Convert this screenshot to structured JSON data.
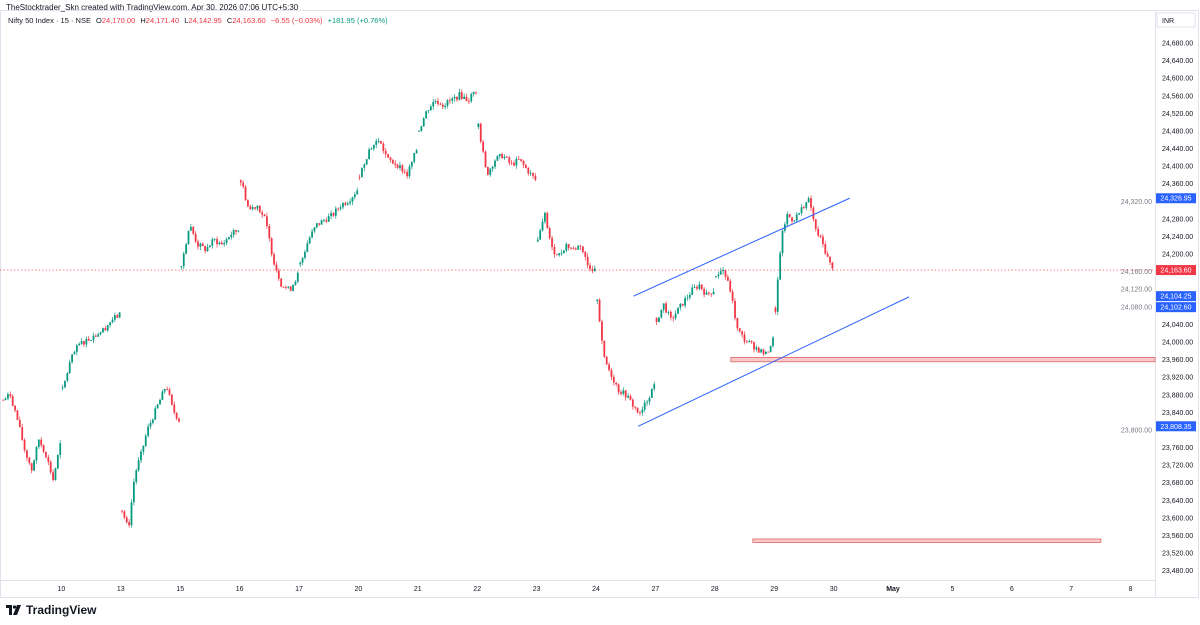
{
  "header": {
    "attribution": "TheStocktrader_Skn created with TradingView.com, Apr 30, 2026 07:06 UTC+5:30",
    "symbol": "Nifty 50 Index · 15 · NSE",
    "open_label": "O",
    "open": "24,170.00",
    "high_label": "H",
    "high": "24,171.40",
    "low_label": "L",
    "low": "24,142.95",
    "close_label": "C",
    "close": "24,163.60",
    "change": "−6.55 (−0.03%)",
    "day_change": "+181.95 (+0.76%)"
  },
  "currency": "INR",
  "footer": {
    "logo_text": "TradingView"
  },
  "colors": {
    "up": "#089981",
    "down": "#f23645",
    "trendline": "#2962ff",
    "zone_fill": "#f8c9c9",
    "zone_border": "#e06666",
    "last_price": "#f23645"
  },
  "chart_data": {
    "type": "candlestick",
    "interval": "15 min",
    "ylim": [
      23460,
      24700
    ],
    "y_ticks": [
      "24,680.00",
      "24,640.00",
      "24,600.00",
      "24,560.00",
      "24,520.00",
      "24,480.00",
      "24,440.00",
      "24,400.00",
      "24,360.00",
      "24,320.00",
      "24,280.00",
      "24,240.00",
      "24,200.00",
      "24,160.00",
      "24,120.00",
      "24,080.00",
      "24,040.00",
      "24,000.00",
      "23,960.00",
      "23,920.00",
      "23,880.00",
      "23,840.00",
      "23,800.00",
      "23,760.00",
      "23,720.00",
      "23,680.00",
      "23,640.00",
      "23,600.00",
      "23,560.00",
      "23,520.00",
      "23,480.00"
    ],
    "x_ticks": [
      "10",
      "13",
      "15",
      "16",
      "17",
      "20",
      "21",
      "22",
      "23",
      "24",
      "27",
      "28",
      "29",
      "30",
      "May",
      "5",
      "6",
      "7",
      "8"
    ],
    "sessions": [
      {
        "day": null,
        "path": [
          23868,
          23880,
          23823,
          23755,
          23710,
          23778,
          23744,
          23687,
          23766
        ]
      },
      {
        "day": "10",
        "path": [
          23891,
          23960,
          23994,
          24005,
          24016,
          24028,
          24050,
          24062
        ]
      },
      {
        "day": "13",
        "path": [
          23619,
          23573,
          23698,
          23744,
          23800,
          23834,
          23868,
          23903,
          23846,
          23823
        ]
      },
      {
        "day": "15",
        "path": [
          24175,
          24266,
          24221,
          24210,
          24232,
          24221,
          24244,
          24255
        ]
      },
      {
        "day": "16",
        "path": [
          24369,
          24300,
          24312,
          24278,
          24187,
          24130,
          24118,
          24153
        ]
      },
      {
        "day": "17",
        "path": [
          24175,
          24232,
          24266,
          24278,
          24289,
          24312,
          24323,
          24346
        ]
      },
      {
        "day": "20",
        "path": [
          24380,
          24437,
          24460,
          24414,
          24403,
          24380,
          24437
        ]
      },
      {
        "day": "21",
        "path": [
          24482,
          24528,
          24550,
          24539,
          24550,
          24562,
          24550,
          24573
        ]
      },
      {
        "day": "22",
        "path": [
          24494,
          24380,
          24414,
          24425,
          24403,
          24414,
          24391,
          24369
        ]
      },
      {
        "day": "23",
        "path": [
          24232,
          24289,
          24210,
          24198,
          24221,
          24210,
          24221,
          24175,
          24164
        ]
      },
      {
        "day": "24",
        "path": [
          24096,
          23960,
          23925,
          23891,
          23880,
          23857,
          23834,
          23868,
          23903
        ]
      },
      {
        "day": "27",
        "path": [
          24050,
          24085,
          24050,
          24073,
          24096,
          24118,
          24130,
          24107,
          24118
        ]
      },
      {
        "day": "28",
        "path": [
          24153,
          24164,
          24118,
          24028,
          24005,
          23994,
          23982,
          23971,
          24005
        ]
      },
      {
        "day": "29",
        "path": [
          24073,
          24232,
          24289,
          24278,
          24289,
          24312,
          24323,
          24255,
          24232,
          24198,
          24164
        ]
      }
    ],
    "last_price": {
      "value": 24163.6,
      "label": "24,163.60"
    },
    "price_labels": [
      {
        "value": 24326.95,
        "label": "24,326.95"
      },
      {
        "value": 24104.25,
        "label": "24,104.25"
      },
      {
        "value": 24102.6,
        "label": "24,102.60"
      },
      {
        "value": 23808.35,
        "label": "23,808.35"
      }
    ],
    "trendlines": [
      {
        "from": {
          "day": "24",
          "frac": 0.63,
          "price": 24104.25
        },
        "to": {
          "day": "30",
          "frac": 0.27,
          "price": 24326.95
        }
      },
      {
        "from": {
          "day": "24",
          "frac": 0.71,
          "price": 23808.35
        },
        "to": {
          "day": "May",
          "frac": 0.27,
          "price": 24102.6
        }
      }
    ],
    "zones": [
      {
        "from_day": "28",
        "from_frac": 0.27,
        "to": "axis",
        "low": 23955,
        "high": 23965
      },
      {
        "from_day": "28",
        "from_frac": 0.64,
        "to_day": "7",
        "to_frac": 0.5,
        "low": 23544,
        "high": 23552
      }
    ]
  }
}
